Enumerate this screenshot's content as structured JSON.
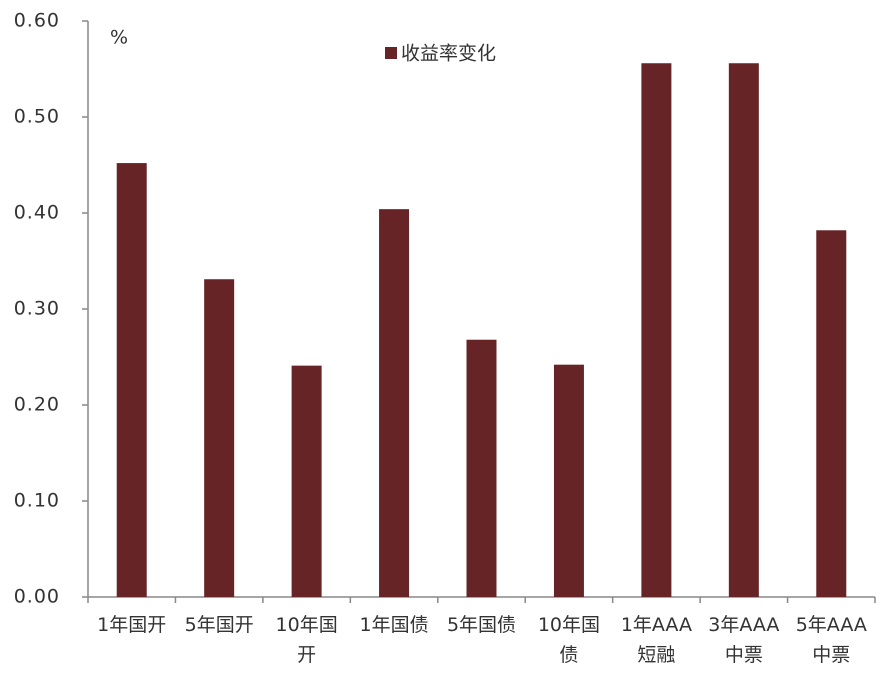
{
  "chart_data": {
    "type": "bar",
    "unit_label": "%",
    "categories": [
      "1年国开",
      "5年国开",
      "10年国开",
      "1年国债",
      "5年国债",
      "10年国债",
      "1年AAA短融",
      "3年AAA中票",
      "5年AAA中票"
    ],
    "series": [
      {
        "name": "收益率变化",
        "color": "#662426",
        "values": [
          0.452,
          0.331,
          0.241,
          0.404,
          0.268,
          0.242,
          0.556,
          0.556,
          0.382
        ]
      }
    ],
    "ylim": [
      0,
      0.6
    ],
    "yticks": [
      {
        "value": 0,
        "label": "0.00"
      },
      {
        "value": 0.1,
        "label": "0.10"
      },
      {
        "value": 0.2,
        "label": "0.20"
      },
      {
        "value": 0.3,
        "label": "0.30"
      },
      {
        "value": 0.4,
        "label": "0.40"
      },
      {
        "value": 0.5,
        "label": "0.50"
      },
      {
        "value": 0.6,
        "label": "0.60"
      }
    ],
    "grid": false,
    "legend": "top"
  }
}
